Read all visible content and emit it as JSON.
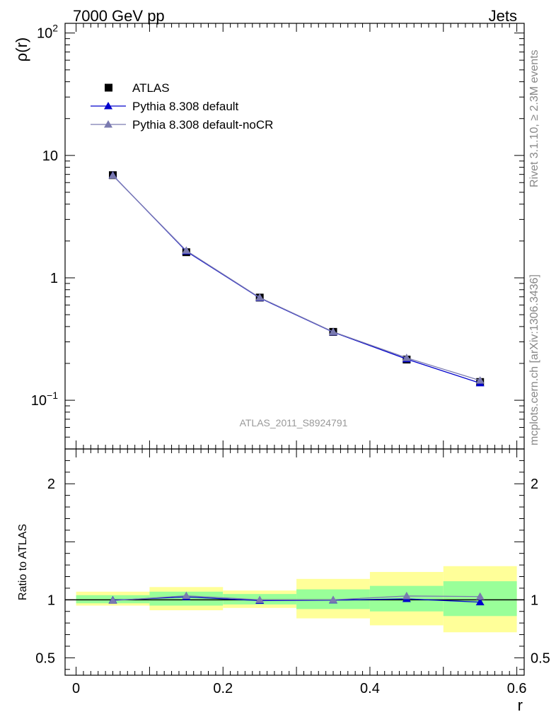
{
  "header": {
    "left": "7000 GeV pp",
    "right": "Jets"
  },
  "side_labels": {
    "rivet": "Rivet 3.1.10, ≥ 2.3M events",
    "source": "mcplots.cern.ch [arXiv:1306.3436]"
  },
  "analysis_label": "ATLAS_2011_S8924791",
  "chart_data": [
    {
      "type": "line",
      "panel": "main",
      "ylabel": "ρ(r)",
      "xlabel": "r",
      "yscale": "log",
      "xlim": [
        -0.015,
        0.61
      ],
      "ylim": [
        0.04,
        120
      ],
      "x": [
        0.05,
        0.15,
        0.25,
        0.35,
        0.45,
        0.55
      ],
      "xbins": [
        [
          0,
          0.1
        ],
        [
          0.1,
          0.2
        ],
        [
          0.2,
          0.3
        ],
        [
          0.3,
          0.4
        ],
        [
          0.4,
          0.5
        ],
        [
          0.5,
          0.6
        ]
      ],
      "yticks_major": [
        {
          "value": 0.1,
          "label": "10",
          "exp": "−1"
        },
        {
          "value": 1,
          "label": "1",
          "exp": ""
        },
        {
          "value": 10,
          "label": "10",
          "exp": ""
        },
        {
          "value": 100,
          "label": "10",
          "exp": "2"
        }
      ],
      "legend_position": "top-left",
      "series": [
        {
          "name": "ATLAS",
          "marker": "square",
          "color": "#000000",
          "values": [
            6.9,
            1.62,
            0.69,
            0.362,
            0.215,
            0.141
          ]
        },
        {
          "name": "Pythia 8.308 default",
          "marker": "triangle",
          "color": "#0000cc",
          "values": [
            6.88,
            1.65,
            0.685,
            0.36,
            0.217,
            0.138
          ]
        },
        {
          "name": "Pythia 8.308 default-noCR",
          "marker": "triangle",
          "color": "#7a7ab0",
          "values": [
            6.85,
            1.67,
            0.69,
            0.362,
            0.222,
            0.145
          ]
        }
      ]
    },
    {
      "type": "line",
      "panel": "ratio",
      "ylabel": "Ratio to ATLAS",
      "xlabel": "r",
      "xlim": [
        -0.015,
        0.61
      ],
      "ylim": [
        0.35,
        2.3
      ],
      "x": [
        0.05,
        0.15,
        0.25,
        0.35,
        0.45,
        0.55
      ],
      "xticks": [
        {
          "value": 0,
          "label": "0"
        },
        {
          "value": 0.2,
          "label": "0.2"
        },
        {
          "value": 0.4,
          "label": "0.4"
        },
        {
          "value": 0.6,
          "label": "0.6"
        }
      ],
      "yticks": [
        {
          "value": 0.5,
          "label": "0.5"
        },
        {
          "value": 1,
          "label": "1"
        },
        {
          "value": 2,
          "label": "2"
        }
      ],
      "bands": [
        {
          "x": [
            0,
            0.1
          ],
          "yellow": [
            0.95,
            1.07
          ],
          "green": [
            0.97,
            1.04
          ]
        },
        {
          "x": [
            0.1,
            0.2
          ],
          "yellow": [
            0.91,
            1.11
          ],
          "green": [
            0.95,
            1.07
          ]
        },
        {
          "x": [
            0.2,
            0.3
          ],
          "yellow": [
            0.93,
            1.08
          ],
          "green": [
            0.96,
            1.05
          ]
        },
        {
          "x": [
            0.3,
            0.4
          ],
          "yellow": [
            0.84,
            1.18
          ],
          "green": [
            0.92,
            1.09
          ]
        },
        {
          "x": [
            0.4,
            0.5
          ],
          "yellow": [
            0.78,
            1.24
          ],
          "green": [
            0.9,
            1.12
          ]
        },
        {
          "x": [
            0.5,
            0.6
          ],
          "yellow": [
            0.72,
            1.29
          ],
          "green": [
            0.86,
            1.16
          ]
        }
      ],
      "colors": {
        "yellow": "#ffff99",
        "green": "#99ff99"
      },
      "series": [
        {
          "name": "Pythia 8.308 default",
          "color": "#0000cc",
          "values": [
            0.997,
            1.025,
            0.993,
            0.997,
            1.008,
            0.98
          ]
        },
        {
          "name": "Pythia 8.308 default-noCR",
          "color": "#7a7ab0",
          "values": [
            0.993,
            1.035,
            1.0,
            1.0,
            1.033,
            1.028
          ]
        }
      ]
    }
  ]
}
